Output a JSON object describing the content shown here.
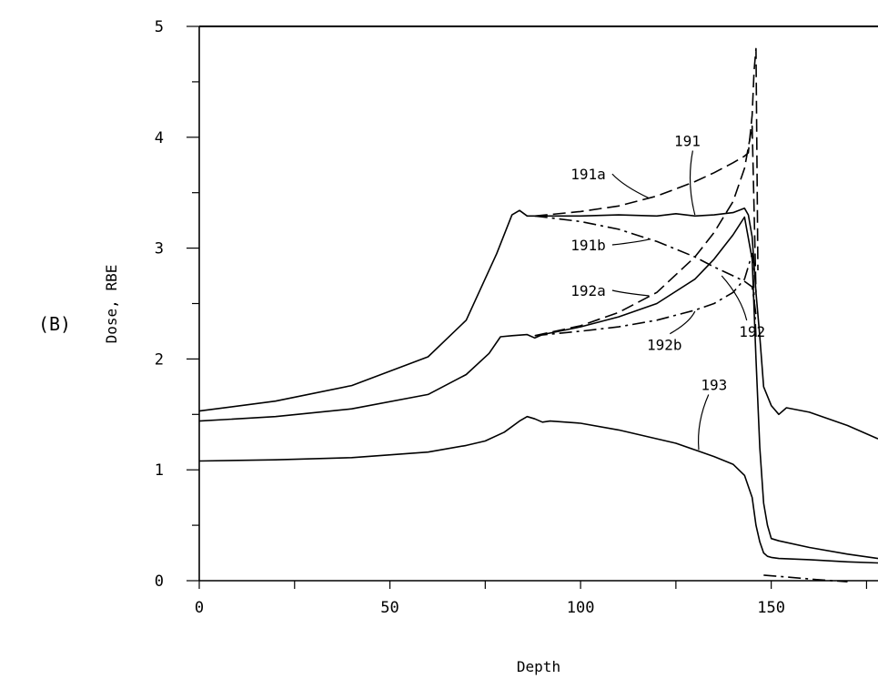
{
  "figure": {
    "panel_label": "(B)"
  },
  "chart_data": {
    "type": "line",
    "title": "",
    "xlabel": "Depth",
    "ylabel": "Dose, RBE",
    "xlim": [
      0,
      178
    ],
    "ylim": [
      0,
      5
    ],
    "x_ticks": [
      0,
      50,
      100,
      150
    ],
    "y_ticks": [
      0,
      1,
      2,
      3,
      4,
      5
    ],
    "grid": false,
    "legend": "none",
    "series": [
      {
        "name": "191",
        "style": "solid",
        "x": [
          0,
          20,
          40,
          60,
          70,
          78,
          82,
          84,
          86,
          90,
          100,
          110,
          120,
          125,
          130,
          135,
          140,
          143,
          144,
          145,
          146,
          147,
          148,
          150,
          152,
          154,
          160,
          170,
          178
        ],
        "y": [
          1.53,
          1.62,
          1.76,
          2.02,
          2.35,
          2.95,
          3.3,
          3.34,
          3.29,
          3.29,
          3.29,
          3.3,
          3.29,
          3.31,
          3.29,
          3.3,
          3.32,
          3.36,
          3.3,
          3.1,
          2.6,
          2.2,
          1.75,
          1.58,
          1.5,
          1.56,
          1.52,
          1.4,
          1.28
        ]
      },
      {
        "name": "191a",
        "style": "dashed",
        "x": [
          88,
          100,
          110,
          120,
          130,
          135,
          140,
          143,
          144,
          145,
          145.5,
          146,
          146.5
        ],
        "y": [
          3.29,
          3.33,
          3.38,
          3.47,
          3.6,
          3.68,
          3.77,
          3.83,
          3.86,
          4.2,
          4.6,
          4.8,
          2.8
        ]
      },
      {
        "name": "191b",
        "style": "dash-dot",
        "x": [
          88,
          100,
          110,
          120,
          130,
          135,
          140,
          143,
          145,
          146
        ],
        "y": [
          3.29,
          3.24,
          3.17,
          3.06,
          2.92,
          2.83,
          2.75,
          2.7,
          2.65,
          2.4
        ]
      },
      {
        "name": "192",
        "style": "solid",
        "x": [
          0,
          20,
          40,
          60,
          70,
          76,
          79,
          82,
          86,
          88,
          90,
          100,
          110,
          120,
          130,
          135,
          140,
          143,
          145,
          146,
          147,
          148,
          149,
          150,
          152,
          160,
          170,
          178
        ],
        "y": [
          1.44,
          1.48,
          1.55,
          1.68,
          1.86,
          2.05,
          2.2,
          2.21,
          2.22,
          2.19,
          2.22,
          2.29,
          2.38,
          2.5,
          2.72,
          2.9,
          3.12,
          3.28,
          2.9,
          2.0,
          1.2,
          0.7,
          0.5,
          0.38,
          0.36,
          0.3,
          0.24,
          0.2
        ]
      },
      {
        "name": "192a",
        "style": "dashed",
        "x": [
          88,
          100,
          110,
          120,
          130,
          135,
          140,
          143,
          145,
          146
        ],
        "y": [
          2.21,
          2.3,
          2.42,
          2.6,
          2.92,
          3.14,
          3.42,
          3.72,
          4.1,
          2.6
        ]
      },
      {
        "name": "192b",
        "style": "dash-dot",
        "x": [
          88,
          100,
          110,
          120,
          130,
          135,
          140,
          143,
          145,
          146
        ],
        "y": [
          2.21,
          2.25,
          2.29,
          2.35,
          2.44,
          2.5,
          2.6,
          2.72,
          2.95,
          2.2
        ]
      },
      {
        "name": "193",
        "style": "solid",
        "x": [
          0,
          20,
          40,
          60,
          70,
          75,
          80,
          84,
          86,
          88,
          90,
          92,
          100,
          110,
          120,
          125,
          130,
          135,
          140,
          143,
          145,
          146,
          147,
          148,
          149,
          150,
          152,
          160,
          170,
          178
        ],
        "y": [
          1.08,
          1.09,
          1.11,
          1.16,
          1.22,
          1.26,
          1.34,
          1.44,
          1.48,
          1.46,
          1.43,
          1.44,
          1.42,
          1.36,
          1.28,
          1.24,
          1.18,
          1.12,
          1.05,
          0.95,
          0.75,
          0.5,
          0.35,
          0.25,
          0.22,
          0.21,
          0.2,
          0.19,
          0.17,
          0.16
        ]
      },
      {
        "name": "",
        "style": "dash-dot",
        "x": [
          148,
          155,
          162,
          170
        ],
        "y": [
          0.05,
          0.03,
          0.01,
          -0.01
        ]
      }
    ],
    "annotations": [
      {
        "text": "191",
        "x": 128,
        "y": 3.92,
        "target_x": 130,
        "target_y": 3.3
      },
      {
        "text": "191a",
        "x": 102,
        "y": 3.62,
        "target_x": 118,
        "target_y": 3.45
      },
      {
        "text": "191b",
        "x": 102,
        "y": 2.98,
        "target_x": 118,
        "target_y": 3.08
      },
      {
        "text": "192a",
        "x": 102,
        "y": 2.57,
        "target_x": 118,
        "target_y": 2.57
      },
      {
        "text": "192b",
        "x": 122,
        "y": 2.08,
        "target_x": 130,
        "target_y": 2.43
      },
      {
        "text": "192",
        "x": 145,
        "y": 2.2,
        "target_x": 137,
        "target_y": 2.75
      },
      {
        "text": "193",
        "x": 135,
        "y": 1.72,
        "target_x": 131,
        "target_y": 1.18
      }
    ]
  }
}
